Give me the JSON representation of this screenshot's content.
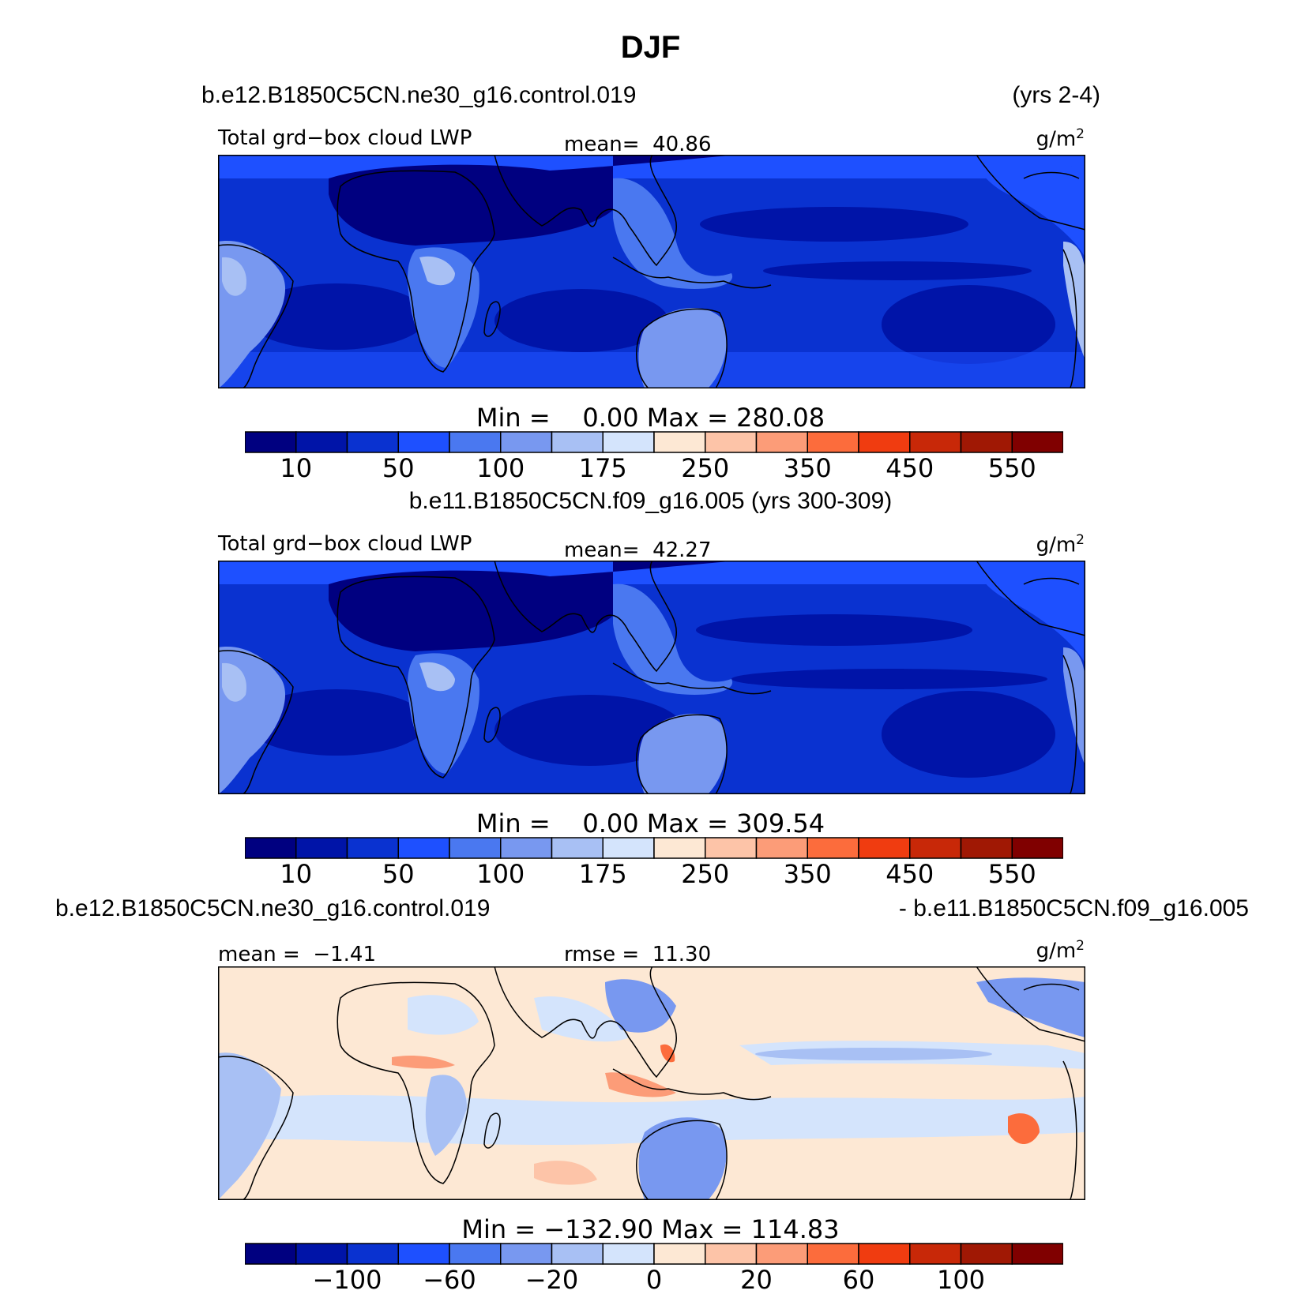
{
  "page_title": "DJF",
  "chart_data": [
    {
      "type": "heatmap",
      "case_title": "b.e12.B1850C5CN.ne30_g16.control.019",
      "years": "(yrs 2-4)",
      "variable": "Total grd−box cloud LWP",
      "mean_label": "mean=",
      "mean_value": "40.86",
      "units": "g/m",
      "units_sup": "2",
      "min_label": "Min =",
      "min_value": "0.00",
      "max_label": "Max =",
      "max_value": "280.08",
      "value_range": [
        0,
        280.08
      ],
      "colorbar_levels": [
        5,
        10,
        25,
        50,
        75,
        100,
        150,
        175,
        200,
        250,
        300,
        350,
        400,
        450,
        500,
        550
      ],
      "colorbar_ticks": [
        "10",
        "50",
        "100",
        "175",
        "250",
        "350",
        "450",
        "550"
      ]
    },
    {
      "type": "heatmap",
      "case_title": "b.e11.B1850C5CN.f09_g16.005 (yrs 300-309)",
      "variable": "Total grd−box cloud LWP",
      "mean_label": "mean=",
      "mean_value": "42.27",
      "units": "g/m",
      "units_sup": "2",
      "min_label": "Min =",
      "min_value": "0.00",
      "max_label": "Max =",
      "max_value": "309.54",
      "value_range": [
        0,
        309.54
      ],
      "colorbar_levels": [
        5,
        10,
        25,
        50,
        75,
        100,
        150,
        175,
        200,
        250,
        300,
        350,
        400,
        450,
        500,
        550
      ],
      "colorbar_ticks": [
        "10",
        "50",
        "100",
        "175",
        "250",
        "350",
        "450",
        "550"
      ]
    },
    {
      "type": "heatmap",
      "case_title_left": "b.e12.B1850C5CN.ne30_g16.control.019",
      "case_title_right": "- b.e11.B1850C5CN.f09_g16.005",
      "mean_label": "mean =",
      "mean_value": "−1.41",
      "rmse_label": "rmse =",
      "rmse_value": "11.30",
      "units": "g/m",
      "units_sup": "2",
      "min_label": "Min =",
      "min_value": "−132.90",
      "max_label": "Max =",
      "max_value": "114.83",
      "value_range": [
        -132.9,
        114.83
      ],
      "colorbar_levels": [
        -120,
        -100,
        -80,
        -60,
        -40,
        -20,
        -10,
        0,
        10,
        20,
        40,
        60,
        80,
        100,
        120
      ],
      "colorbar_ticks": [
        "−100",
        "−60",
        "−20",
        "0",
        "20",
        "60",
        "100"
      ]
    }
  ],
  "colorbar_palette": [
    "#000080",
    "#0014a8",
    "#0a32d0",
    "#1e50ff",
    "#4a78f0",
    "#7898f0",
    "#a8c0f4",
    "#d4e4fc",
    "#fde8d4",
    "#fdc4a8",
    "#fc9c78",
    "#fc6c3c",
    "#f03c10",
    "#c82808",
    "#a01804",
    "#800000"
  ]
}
